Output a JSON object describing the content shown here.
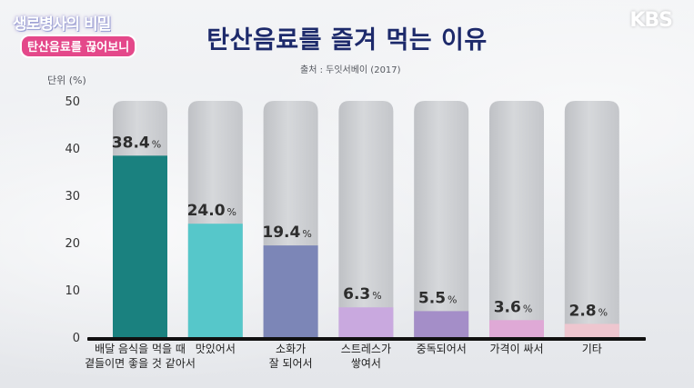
{
  "logo": {
    "show_title": "생로병사의 비밀",
    "episode": "탄산음료를 끊어보니"
  },
  "network": "KBS",
  "title": "탄산음료를 즐겨 먹는 이유",
  "source": "출처 : 두잇서베이 (2017)",
  "chart_data": {
    "type": "bar",
    "title": "탄산음료를 즐겨 먹는 이유",
    "ylabel": "단위 (%)",
    "ylim": [
      0,
      50
    ],
    "yticks": [
      0,
      10,
      20,
      30,
      40,
      50
    ],
    "grid": false,
    "categories": [
      [
        "배달 음식을 먹을 때",
        "곁들이면 좋을 것 같아서"
      ],
      [
        "맛있어서"
      ],
      [
        "소화가",
        "잘 되어서"
      ],
      [
        "스트레스가",
        "쌓여서"
      ],
      [
        "중독되어서"
      ],
      [
        "가격이 싸서"
      ],
      [
        "기타"
      ]
    ],
    "values": [
      38.4,
      24.0,
      19.4,
      6.3,
      5.5,
      3.6,
      2.8
    ],
    "value_labels": [
      "38.4",
      "24.0",
      "19.4",
      "6.3",
      "5.5",
      "3.6",
      "2.8"
    ],
    "unit": "%",
    "colors": [
      "#1a817f",
      "#56c7ca",
      "#7c86b7",
      "#c9a9df",
      "#a48ec8",
      "#dfa9d6",
      "#eec6cf"
    ]
  }
}
